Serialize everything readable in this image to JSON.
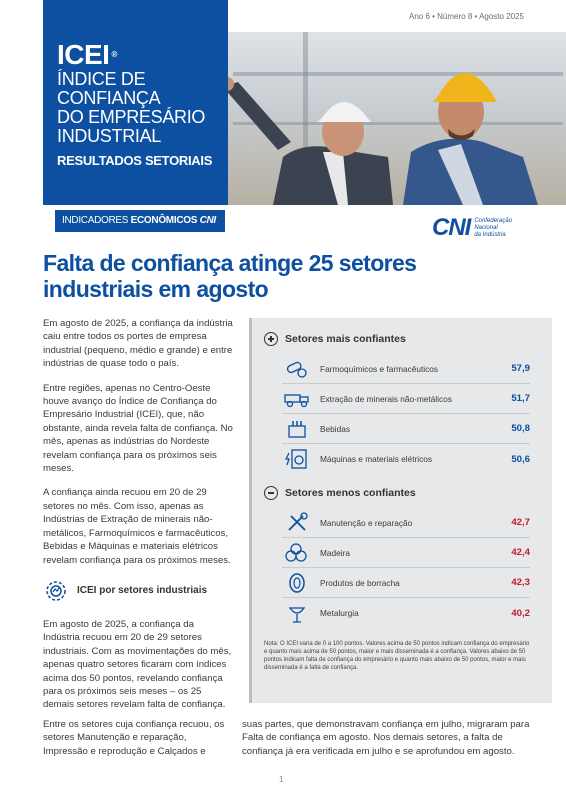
{
  "edition": "Ano 6 • Número 8 • Agosto 2025",
  "header": {
    "logo": "ICEI",
    "registered": "®",
    "full_name": [
      "ÍNDICE DE",
      "CONFIANÇA",
      "DO EMPRESÁRIO",
      "INDUSTRIAL"
    ],
    "section": "RESULTADOS SETORIAIS",
    "indicators_prefix": "INDICADORES ",
    "indicators_bold": "ECONÔMICOS",
    "indicators_brand": " CNI"
  },
  "cni": {
    "mark": "CNI",
    "lines": [
      "Confederação",
      "Nacional",
      "da Indústria"
    ]
  },
  "headline": "Falta de confiança atinge 25 setores industriais em agosto",
  "left_paragraphs": [
    "Em agosto de 2025, a confiança da indústria caiu entre todos os portes de empresa industrial (pequeno, médio e grande) e entre indústrias de quase todo o país.",
    "Entre regiões, apenas no Centro-Oeste houve avanço do Índice de Confiança do Empresário Industrial (ICEI), que, não obstante, ainda revela falta de confiança. No mês, apenas as indústrias do Nordeste revelam confiança para os próximos seis meses.",
    "A confiança ainda recuou em 20 de 29 setores no mês. Com isso, apenas as Indústrias de Extração de minerais não-metálicos, Farmoquímicos e farmacêuticos, Bebidas e Máquinas e materiais elétricos revelam confiança para os próximos meses."
  ],
  "subsection": {
    "title": "ICEI por setores industriais",
    "icon": "gear-icon",
    "paragraph": "Em agosto de 2025, a confiança da Indústria recuou em 20 de 29 setores industriais. Com as movimentações do mês, apenas quatro setores ficaram com índices acima dos 50 pontos, revelando confiança para os próximos seis meses – os 25 demais setores revelam falta de confiança."
  },
  "panel": {
    "top_title": "Setores mais confiantes",
    "top": [
      {
        "label": "Farmoquímicos e farmacêuticos",
        "value": "57,9",
        "icon": "pills-icon"
      },
      {
        "label": "Extração de minerais não-metálicos",
        "value": "51,7",
        "icon": "mining-truck-icon"
      },
      {
        "label": "Bebidas",
        "value": "50,8",
        "icon": "bottles-icon"
      },
      {
        "label": "Máquinas e materiais elétricos",
        "value": "50,6",
        "icon": "electric-machine-icon"
      }
    ],
    "bottom_title": "Setores menos confiantes",
    "bottom": [
      {
        "label": "Manutenção e reparação",
        "value": "42,7",
        "icon": "tools-icon"
      },
      {
        "label": "Madeira",
        "value": "42,4",
        "icon": "logs-icon"
      },
      {
        "label": "Produtos de borracha",
        "value": "42,3",
        "icon": "tire-icon"
      },
      {
        "label": "Metalurgia",
        "value": "40,2",
        "icon": "ladle-icon"
      }
    ],
    "note": "Nota: O ICEI varia de 0 a 100 pontos. Valores acima de 50 pontos indicam confiança do empresário e quanto mais acima de 50 pontos, maior e mais disseminada é a confiança. Valores abaixo de 50 pontos indicam falta de confiança do empresário e quanto mais abaixo de 50 pontos, maior e mais disseminada é a falta de confiança."
  },
  "bottom_left": "Entre os setores cuja confiança recuou, os setores Manutenção e reparação, Impressão e reprodução e Calçados e",
  "bottom_right": "suas partes, que demonstravam confiança em julho, migraram para Falta de confiança em agosto. Nos demais setores, a falta de confiança já era verificada em julho e se aprofundou em agosto.",
  "page_number": "1",
  "colors": {
    "brand_blue": "#0d4fa0",
    "negative_red": "#c11d2a",
    "panel_bg": "#e6e8ea"
  }
}
